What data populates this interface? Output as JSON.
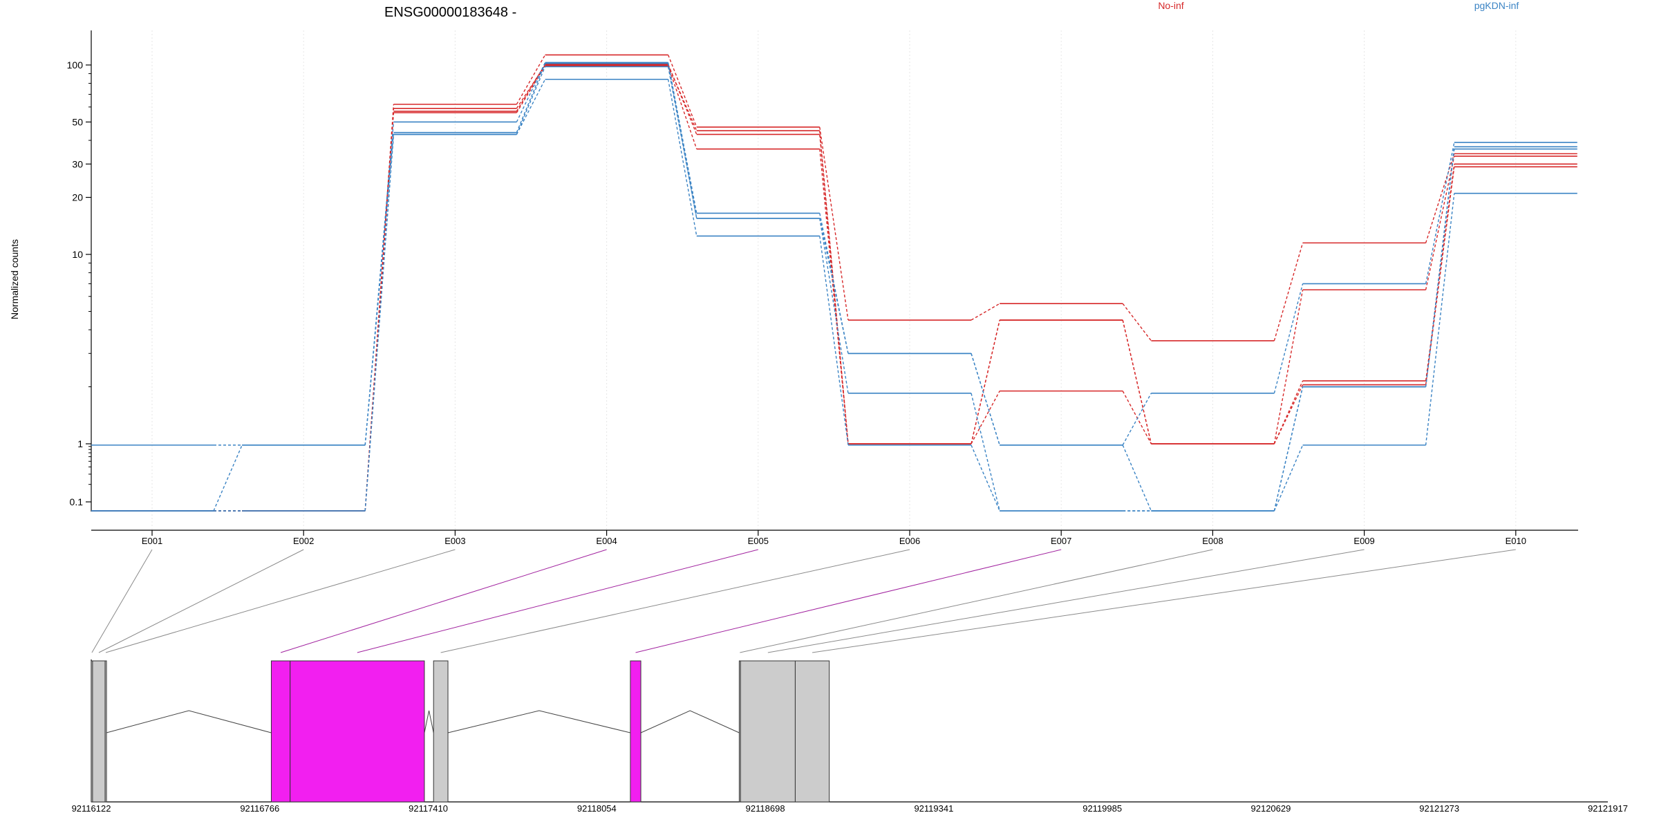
{
  "chart_data": {
    "type": "line",
    "title": "ENSG00000183648 -",
    "ylabel": "Normalized counts",
    "xlabel": "",
    "y_scale": "log",
    "y_ticks": [
      {
        "value": 0.1,
        "label": "0.1"
      },
      {
        "value": 1,
        "label": "1"
      },
      {
        "value": 10,
        "label": "10"
      },
      {
        "value": 20,
        "label": "20"
      },
      {
        "value": 30,
        "label": "30"
      },
      {
        "value": 50,
        "label": "50"
      },
      {
        "value": 100,
        "label": "100"
      }
    ],
    "categories": [
      "E001",
      "E002",
      "E003",
      "E004",
      "E005",
      "E006",
      "E007",
      "E008",
      "E009",
      "E010"
    ],
    "legend_placement": "top",
    "groups": [
      {
        "name": "No-inf",
        "color": "#d62728"
      },
      {
        "name": "pgKDN-inf",
        "color": "#3a83c4"
      }
    ],
    "series": [
      {
        "group": "No-inf",
        "values": [
          0.07,
          0.07,
          62,
          113,
          47,
          4.5,
          5.5,
          3.5,
          11.5,
          34
        ]
      },
      {
        "group": "No-inf",
        "values": [
          0.07,
          0.07,
          59,
          100,
          45,
          1,
          4.5,
          1,
          6.5,
          33
        ]
      },
      {
        "group": "No-inf",
        "values": [
          0.07,
          0.07,
          57,
          101,
          43,
          1,
          1.9,
          1,
          2.15,
          30
        ]
      },
      {
        "group": "No-inf",
        "values": [
          0.07,
          0.07,
          56,
          99,
          36,
          1,
          4.5,
          1,
          2.05,
          29
        ]
      },
      {
        "group": "pgKDN-inf",
        "values": [
          0.95,
          0.95,
          50,
          103,
          16.5,
          3,
          0.95,
          1.85,
          7,
          39
        ]
      },
      {
        "group": "pgKDN-inf",
        "values": [
          0.07,
          0.95,
          44,
          102,
          15.5,
          1.85,
          0.07,
          0.07,
          2,
          36
        ]
      },
      {
        "group": "pgKDN-inf",
        "values": [
          0.07,
          0.07,
          43,
          98,
          15.5,
          3,
          0.95,
          0.07,
          2,
          37
        ]
      },
      {
        "group": "pgKDN-inf",
        "values": [
          0.07,
          0.07,
          43,
          84,
          12.5,
          0.95,
          0.07,
          0.07,
          0.95,
          21
        ]
      }
    ],
    "gene_model": {
      "coordinate_labels": [
        "92116122",
        "92116766",
        "92117410",
        "92118054",
        "92118698",
        "92119341",
        "92119985",
        "92120629",
        "92121273",
        "92121917"
      ],
      "exons": [
        {
          "bin": "E001",
          "start": 92116122,
          "end": 92116127,
          "significant": false
        },
        {
          "bin": "E002",
          "start": 92116127,
          "end": 92116175,
          "significant": false
        },
        {
          "bin": "E003",
          "start": 92116175,
          "end": 92116180,
          "significant": false
        },
        {
          "bin": "E004",
          "start": 92116810,
          "end": 92116882,
          "significant": true
        },
        {
          "bin": "E005",
          "start": 92116882,
          "end": 92117395,
          "significant": true
        },
        {
          "bin": "E006",
          "start": 92117430,
          "end": 92117485,
          "significant": false
        },
        {
          "bin": "E007",
          "start": 92118182,
          "end": 92118222,
          "significant": true
        },
        {
          "bin": "E008",
          "start": 92118598,
          "end": 92118603,
          "significant": false
        },
        {
          "bin": "E009",
          "start": 92118603,
          "end": 92118812,
          "significant": false
        },
        {
          "bin": "E010",
          "start": 92118812,
          "end": 92118942,
          "significant": false
        }
      ]
    }
  },
  "colors": {
    "significant_exon": "#f21ff0",
    "plain_exon": "#cccccc",
    "axis": "#000000",
    "grid": "#e6e6e6"
  }
}
